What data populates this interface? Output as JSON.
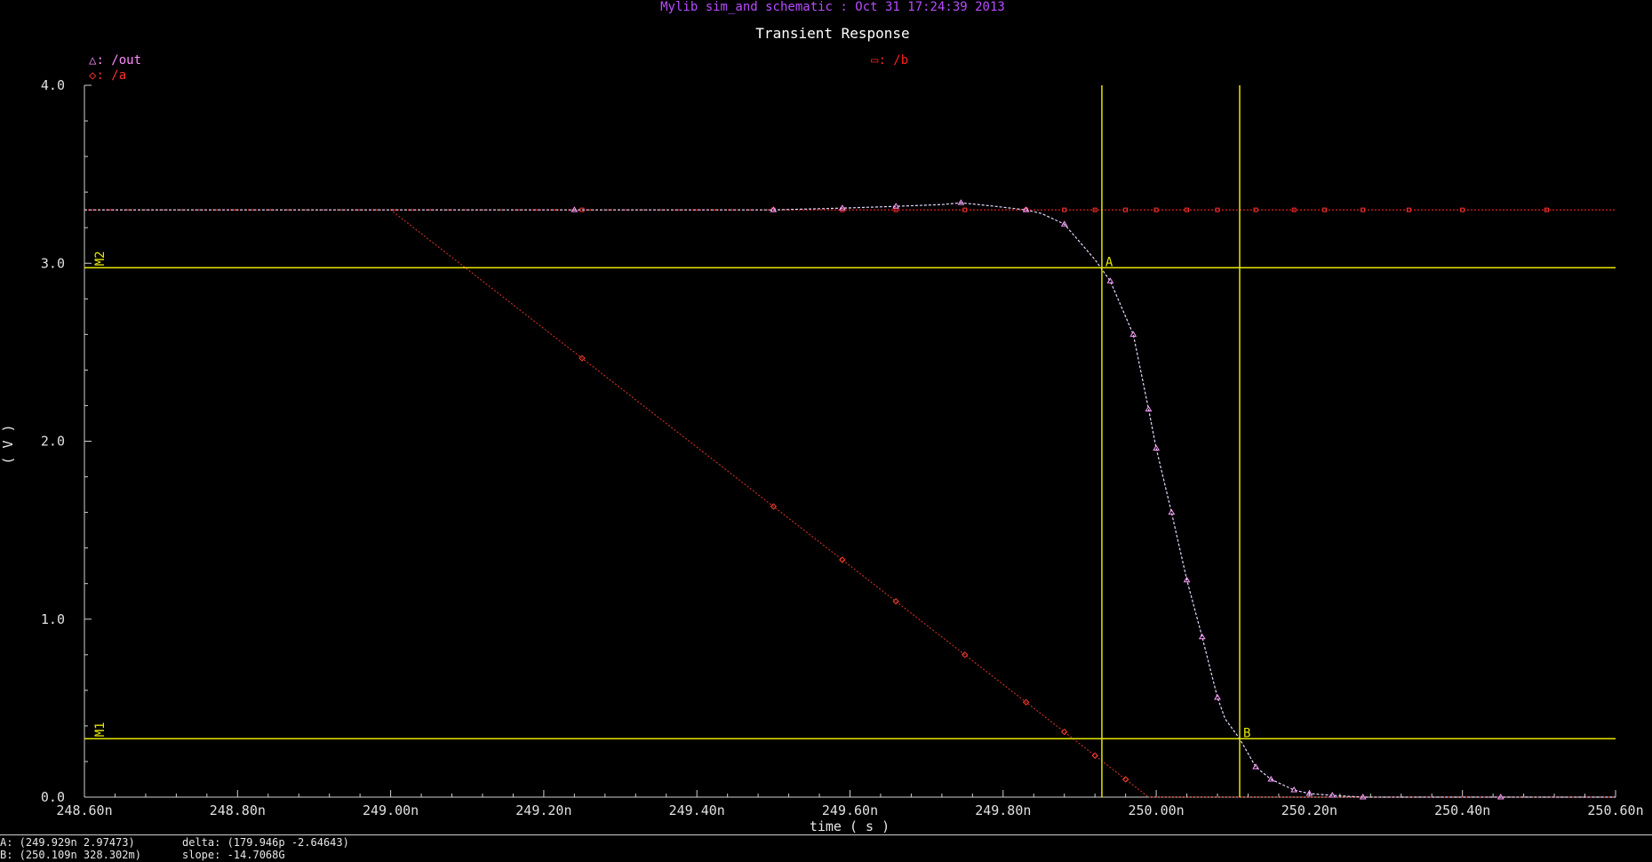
{
  "window": {
    "header": "Mylib sim_and schematic : Oct 31 17:24:39 2013"
  },
  "chart_data": {
    "type": "line",
    "title": "Transient Response",
    "xlabel": "time ( s )",
    "ylabel": "( V )",
    "xlim": [
      248.6,
      250.6
    ],
    "ylim": [
      0,
      4
    ],
    "x_unit": "ns",
    "x_ticks": [
      "248.60n",
      "248.80n",
      "249.00n",
      "249.20n",
      "249.40n",
      "249.60n",
      "249.80n",
      "250.00n",
      "250.20n",
      "250.40n",
      "250.60n"
    ],
    "y_ticks": [
      "0.0",
      "1.0",
      "2.0",
      "3.0",
      "4.0"
    ],
    "grid": false,
    "legend": [
      {
        "marker": "△",
        "name": "/out",
        "color": "#ff8cff"
      },
      {
        "marker": "◇",
        "name": "/a",
        "color": "#ff3030"
      },
      {
        "marker": "▭",
        "name": "/b",
        "color": "#ff2020"
      }
    ],
    "series": [
      {
        "name": "/out",
        "color": "#e8d8ff",
        "x": [
          248.6,
          249.24,
          249.37,
          249.5,
          249.59,
          249.66,
          249.72,
          249.745,
          249.79,
          249.83,
          249.85,
          249.88,
          249.92,
          249.94,
          249.97,
          249.99,
          250.0,
          250.02,
          250.04,
          250.06,
          250.08,
          250.09,
          250.109,
          250.13,
          250.15,
          250.18,
          250.2,
          250.23,
          250.27,
          250.35,
          250.45,
          250.6
        ],
        "y": [
          3.3,
          3.3,
          3.3,
          3.3,
          3.31,
          3.32,
          3.33,
          3.34,
          3.32,
          3.3,
          3.28,
          3.22,
          3.02,
          2.9,
          2.6,
          2.18,
          1.96,
          1.6,
          1.22,
          0.9,
          0.56,
          0.44,
          0.328,
          0.17,
          0.1,
          0.04,
          0.02,
          0.01,
          0.0,
          0.0,
          0.0,
          0.0
        ],
        "markers_at": [
          249.24,
          249.5,
          249.59,
          249.66,
          249.745,
          249.83,
          249.88,
          249.94,
          249.97,
          249.99,
          250.0,
          250.02,
          250.04,
          250.06,
          250.08,
          250.13,
          250.15,
          250.18,
          250.2,
          250.23,
          250.27,
          250.45
        ]
      },
      {
        "name": "/a",
        "color": "#c03020",
        "x": [
          248.6,
          249.0,
          249.99,
          250.6
        ],
        "y": [
          3.3,
          3.3,
          0.0,
          0.0
        ],
        "markers_at": [
          249.25,
          249.5,
          249.59,
          249.66,
          249.75,
          249.83,
          249.88,
          249.92,
          249.96
        ]
      },
      {
        "name": "/b",
        "color": "#ff1e1e",
        "x": [
          248.6,
          250.6
        ],
        "y": [
          3.3,
          3.3
        ],
        "markers_at": [
          249.25,
          249.5,
          249.59,
          249.66,
          249.75,
          249.83,
          249.88,
          249.92,
          249.96,
          250.0,
          250.04,
          250.08,
          250.13,
          250.18,
          250.22,
          250.27,
          250.33,
          250.4,
          250.51
        ]
      }
    ],
    "cursors": {
      "vertical": [
        {
          "x": 249.929,
          "label": "A",
          "y": 2.97473
        },
        {
          "x": 250.109,
          "label": "B",
          "y": 0.328302
        }
      ],
      "horizontal": [
        {
          "y": 2.97473,
          "label": "M2"
        },
        {
          "y": 0.328302,
          "label": "M1"
        }
      ],
      "color": "#e6e600"
    }
  },
  "status": {
    "a_readout": "A: (249.929n 2.97473)",
    "b_readout": "B: (250.109n 328.302m)",
    "delta": "delta: (179.946p -2.64643)",
    "slope": "slope: -14.7068G"
  }
}
